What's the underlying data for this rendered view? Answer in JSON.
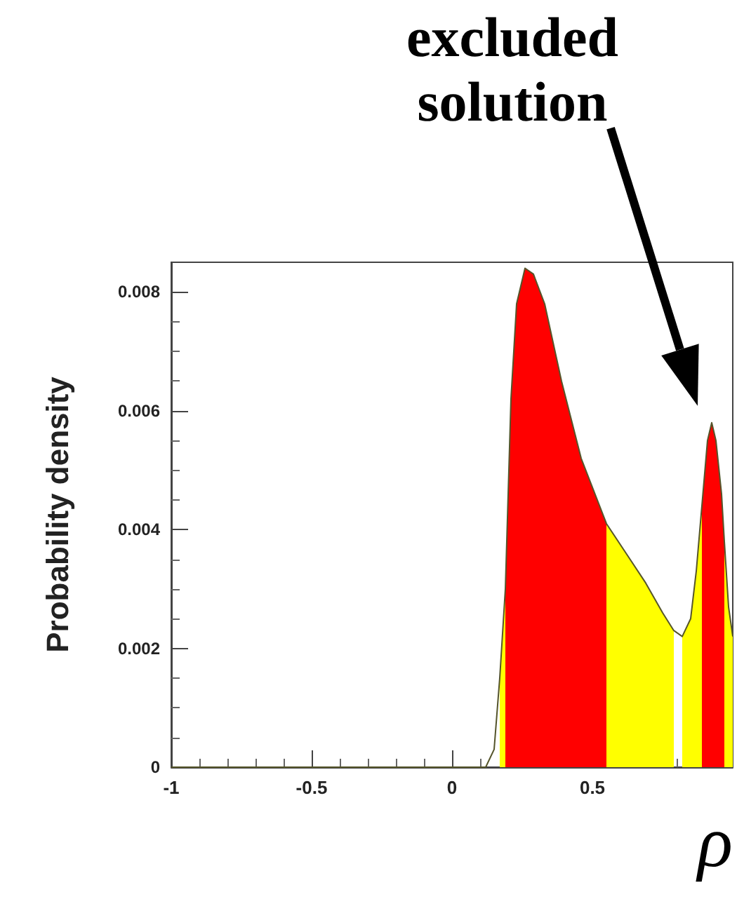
{
  "chart_data": {
    "type": "area",
    "xlabel": "ρ",
    "ylabel": "Probability density",
    "xlim": [
      -1,
      1
    ],
    "ylim": [
      0,
      0.0085
    ],
    "xticks": [
      -1,
      -0.5,
      0,
      0.5
    ],
    "yticks": [
      0,
      0.002,
      0.004,
      0.006,
      0.008
    ],
    "grid": false,
    "marker": "none",
    "annotations": [
      "excluded solution"
    ],
    "series": [
      {
        "color": "#ffff00",
        "x": [
          0.17,
          0.19,
          0.3,
          0.55,
          0.62,
          0.69,
          0.75,
          0.79,
          0.8,
          0.82,
          0.85,
          0.87,
          0.89,
          0.93,
          0.97,
          0.985,
          1.0
        ],
        "values": [
          0.0015,
          0.003,
          null,
          0.0041,
          0.0036,
          0.0031,
          0.0026,
          0.0023,
          null,
          0.0022,
          0.0025,
          0.0033,
          0.0044,
          null,
          0.0038,
          0.0027,
          0.0022
        ]
      },
      {
        "color": "#ff0000",
        "x": [
          0.19,
          0.21,
          0.23,
          0.26,
          0.29,
          0.33,
          0.39,
          0.46,
          0.55,
          0.7,
          0.89,
          0.91,
          0.925,
          0.94,
          0.96,
          0.97
        ],
        "values": [
          0.003,
          0.0062,
          0.0078,
          0.0084,
          0.0083,
          0.0078,
          0.0065,
          0.0052,
          0.0041,
          null,
          0.0044,
          0.0055,
          0.0058,
          0.0055,
          0.0046,
          0.0038
        ]
      },
      {
        "type": "line",
        "color": "#55552a",
        "x": [
          -1,
          0.12,
          0.15,
          0.17,
          0.19,
          0.21,
          0.23,
          0.26,
          0.29,
          0.33,
          0.39,
          0.46,
          0.55,
          0.62,
          0.69,
          0.75,
          0.79,
          0.82,
          0.85,
          0.87,
          0.89,
          0.91,
          0.925,
          0.94,
          0.96,
          0.97,
          0.985,
          1.0
        ],
        "values": [
          0,
          0,
          0.0003,
          0.0015,
          0.003,
          0.0062,
          0.0078,
          0.0084,
          0.0083,
          0.0078,
          0.0065,
          0.0052,
          0.0041,
          0.0036,
          0.0031,
          0.0026,
          0.0023,
          0.0022,
          0.0025,
          0.0033,
          0.0044,
          0.0055,
          0.0058,
          0.0055,
          0.0046,
          0.0038,
          0.0027,
          0.0022
        ]
      }
    ]
  }
}
